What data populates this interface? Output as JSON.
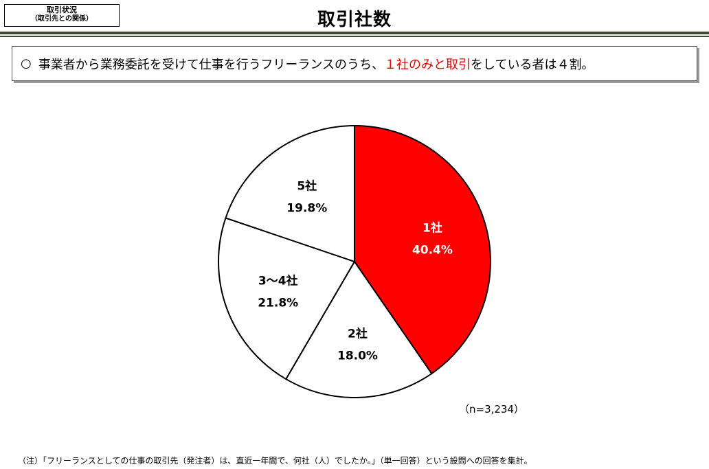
{
  "header": {
    "tag_line1": "取引状況",
    "tag_line2": "（取引先との関係）",
    "title": "取引社数"
  },
  "summary": {
    "bullet": "○",
    "text_before": "事業者から業務委託を受けて仕事を行うフリーランスのうち、",
    "text_highlight": "１社のみと取引",
    "text_after": "をしている者は４割。",
    "highlight_color": "#e60000"
  },
  "chart_data": {
    "type": "pie",
    "title": "",
    "slices": [
      {
        "label": "1社",
        "value": 40.4,
        "value_label": "40.4%",
        "color": "#ff0000",
        "text_color": "#ffffff"
      },
      {
        "label": "2社",
        "value": 18.0,
        "value_label": "18.0%",
        "color": "#ffffff",
        "text_color": "#000000"
      },
      {
        "label": "3～4社",
        "value": 21.8,
        "value_label": "21.8%",
        "color": "#ffffff",
        "text_color": "#000000"
      },
      {
        "label": "5社",
        "value": 19.8,
        "value_label": "19.8%",
        "color": "#ffffff",
        "text_color": "#000000"
      }
    ],
    "start": "12 o'clock",
    "direction": "clockwise",
    "sample_size": "（n=3,234）"
  },
  "footnote": "（注）「フリーランスとしての仕事の取引先（発注者）は、直近一年間で、何社（人）でしたか。」（単一回答）という設問への回答を集計。"
}
